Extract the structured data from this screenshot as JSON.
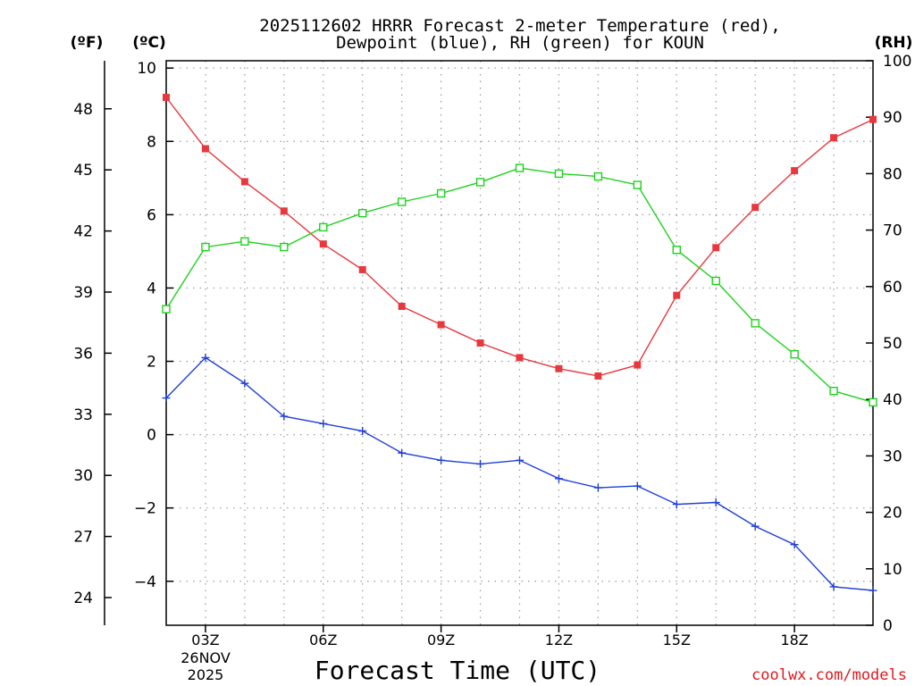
{
  "chart_data": {
    "type": "line",
    "title_line1": "2025112602 HRRR Forecast 2-meter Temperature (red),",
    "title_line2": "Dewpoint (blue), RH (green) for KOUN",
    "xlabel": "Forecast Time (UTC)",
    "date_label_line1": "26NOV",
    "date_label_line2": "2025",
    "left_outer_unit": "(ºF)",
    "left_inner_unit": "(ºC)",
    "right_unit": "(RH)",
    "x": [
      2,
      3,
      4,
      5,
      6,
      7,
      8,
      9,
      10,
      11,
      12,
      13,
      14,
      15,
      16,
      17,
      18,
      19,
      20
    ],
    "x_range": [
      2,
      20
    ],
    "x_ticks": [
      {
        "hour": 3,
        "label": "03Z"
      },
      {
        "hour": 6,
        "label": "06Z"
      },
      {
        "hour": 9,
        "label": "09Z"
      },
      {
        "hour": 12,
        "label": "12Z"
      },
      {
        "hour": 15,
        "label": "15Z"
      },
      {
        "hour": 18,
        "label": "18Z"
      }
    ],
    "celsius_range": [
      -5.2,
      10.2
    ],
    "celsius_ticks": [
      "10",
      "8",
      "6",
      "4",
      "2",
      "0",
      "−2",
      "−4"
    ],
    "celsius_tick_values": [
      10,
      8,
      6,
      4,
      2,
      0,
      -2,
      -4
    ],
    "fahrenheit_ticks": [
      "48",
      "45",
      "42",
      "39",
      "36",
      "33",
      "30",
      "27",
      "24"
    ],
    "fahrenheit_tick_values": [
      48,
      45,
      42,
      39,
      36,
      33,
      30,
      27,
      24
    ],
    "rh_range": [
      0,
      100
    ],
    "rh_ticks": [
      "100",
      "90",
      "80",
      "70",
      "60",
      "50",
      "40",
      "30",
      "20",
      "10",
      "0"
    ],
    "rh_tick_values": [
      100,
      90,
      80,
      70,
      60,
      50,
      40,
      30,
      20,
      10,
      0
    ],
    "grid": true,
    "series": [
      {
        "name": "Temperature",
        "axis": "celsius",
        "color": "#e8383d",
        "marker": "filled-square",
        "values": [
          9.2,
          7.8,
          6.9,
          6.1,
          5.2,
          4.5,
          3.5,
          3.0,
          2.5,
          2.1,
          1.8,
          1.6,
          1.9,
          3.8,
          5.1,
          6.2,
          7.2,
          8.1,
          8.6
        ]
      },
      {
        "name": "Dewpoint",
        "axis": "celsius",
        "color": "#1f3fd8",
        "marker": "plus",
        "values": [
          1.0,
          2.1,
          1.4,
          0.5,
          0.3,
          0.1,
          -0.5,
          -0.7,
          -0.8,
          -0.7,
          -1.2,
          -1.45,
          -1.4,
          -1.9,
          -1.85,
          -2.5,
          -3.0,
          -4.15,
          -4.25
        ]
      },
      {
        "name": "RH",
        "axis": "rh",
        "color": "#1ed21e",
        "marker": "open-square",
        "values": [
          56,
          67,
          68,
          67,
          70.5,
          73,
          75,
          76.5,
          78.5,
          81,
          80,
          79.5,
          78,
          66.5,
          61,
          53.5,
          48,
          41.5,
          39.5
        ]
      }
    ]
  },
  "watermark": {
    "text": "coolwx.com/models",
    "color": "#e0191f"
  }
}
